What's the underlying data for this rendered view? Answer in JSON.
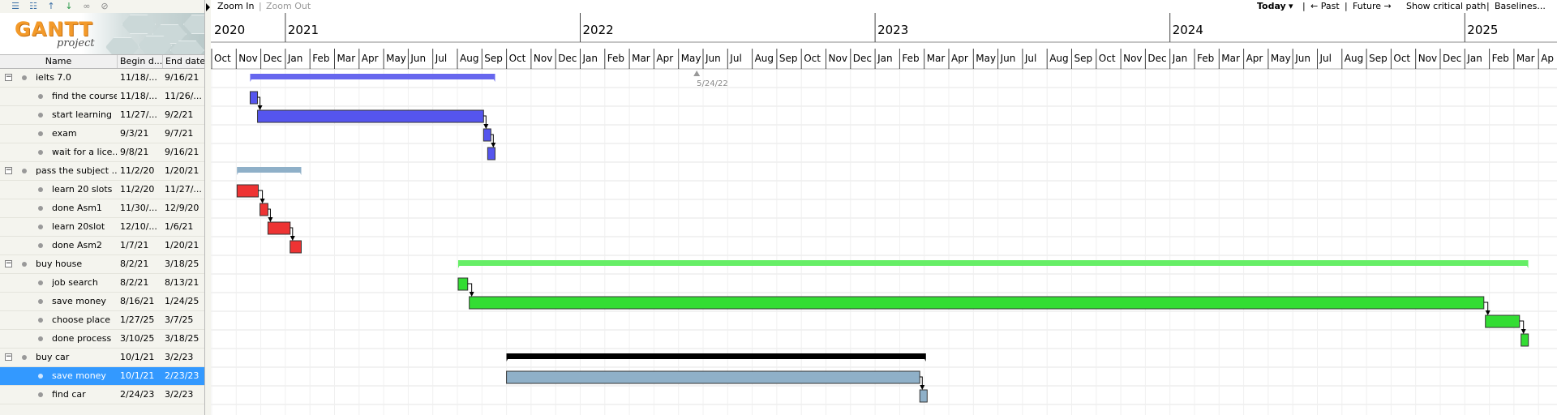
{
  "toolbar": {
    "icons": [
      "outdent-icon",
      "indent-icon",
      "move-up-icon",
      "move-down-icon",
      "link-icon",
      "unlink-icon"
    ]
  },
  "logo": {
    "main": "GANTT",
    "sub": "project"
  },
  "columns": {
    "name": "Name",
    "begin": "Begin d...",
    "end": "End date"
  },
  "chart_toolbar": {
    "zoom_in": "Zoom In",
    "zoom_out": "Zoom Out",
    "today": "Today",
    "past": "← Past",
    "future": "Future →",
    "critical_path": "Show critical path",
    "baselines": "Baselines..."
  },
  "timeline": {
    "years": [
      "2020",
      "2021",
      "2022",
      "2023",
      "2024",
      "2025"
    ],
    "months": [
      "Oct",
      "Nov",
      "Dec",
      "Jan",
      "Feb",
      "Mar",
      "Apr",
      "May",
      "Jun",
      "Jul",
      "Aug",
      "Sep",
      "Oct",
      "Nov",
      "Dec",
      "Jan",
      "Feb",
      "Mar",
      "Apr",
      "May",
      "Jun",
      "Jul",
      "Aug",
      "Sep",
      "Oct",
      "Nov",
      "Dec",
      "Jan",
      "Feb",
      "Mar",
      "Apr",
      "May",
      "Jun",
      "Jul",
      "Aug",
      "Sep",
      "Oct",
      "Nov",
      "Dec",
      "Jan",
      "Feb",
      "Mar",
      "Apr",
      "May",
      "Jun",
      "Jul",
      "Aug",
      "Sep",
      "Oct",
      "Nov",
      "Dec",
      "Jan",
      "Feb",
      "Mar",
      "Ap"
    ],
    "marker_label": "5/24/22"
  },
  "tasks": [
    {
      "name": "ielts 7.0",
      "begin": "11/18/...",
      "end": "9/16/21",
      "level": 0,
      "summary": true
    },
    {
      "name": "find the course",
      "begin": "11/18/...",
      "end": "11/26/...",
      "level": 1
    },
    {
      "name": "start learning",
      "begin": "11/27/...",
      "end": "9/2/21",
      "level": 1
    },
    {
      "name": "exam",
      "begin": "9/3/21",
      "end": "9/7/21",
      "level": 1
    },
    {
      "name": "wait for a lice...",
      "begin": "9/8/21",
      "end": "9/16/21",
      "level": 1
    },
    {
      "name": "pass the subject ...",
      "begin": "11/2/20",
      "end": "1/20/21",
      "level": 0,
      "summary": true
    },
    {
      "name": "learn 20 slots",
      "begin": "11/2/20",
      "end": "11/27/...",
      "level": 1
    },
    {
      "name": "done Asm1",
      "begin": "11/30/...",
      "end": "12/9/20",
      "level": 1
    },
    {
      "name": "learn 20slot",
      "begin": "12/10/...",
      "end": "1/6/21",
      "level": 1
    },
    {
      "name": "done Asm2",
      "begin": "1/7/21",
      "end": "1/20/21",
      "level": 1
    },
    {
      "name": "buy house",
      "begin": "8/2/21",
      "end": "3/18/25",
      "level": 0,
      "summary": true
    },
    {
      "name": "job search",
      "begin": "8/2/21",
      "end": "8/13/21",
      "level": 1
    },
    {
      "name": "save money",
      "begin": "8/16/21",
      "end": "1/24/25",
      "level": 1
    },
    {
      "name": "choose place",
      "begin": "1/27/25",
      "end": "3/7/25",
      "level": 1
    },
    {
      "name": "done process",
      "begin": "3/10/25",
      "end": "3/18/25",
      "level": 1
    },
    {
      "name": "buy car",
      "begin": "10/1/21",
      "end": "3/2/23",
      "level": 0,
      "summary": true
    },
    {
      "name": "save money",
      "begin": "10/1/21",
      "end": "2/23/23",
      "level": 1,
      "selected": true
    },
    {
      "name": "find car",
      "begin": "2/24/23",
      "end": "3/2/23",
      "level": 1
    }
  ],
  "colors": {
    "ielts_summary": "#6666ee",
    "ielts_task": "#5555ee",
    "subject_summary": "#8fb0c8",
    "subject_task": "#ee3333",
    "house_summary": "#66ee66",
    "house_task": "#33dd33",
    "car_summary": "#000000",
    "car_task": "#8fb0c8",
    "selection": "#3399ff"
  }
}
